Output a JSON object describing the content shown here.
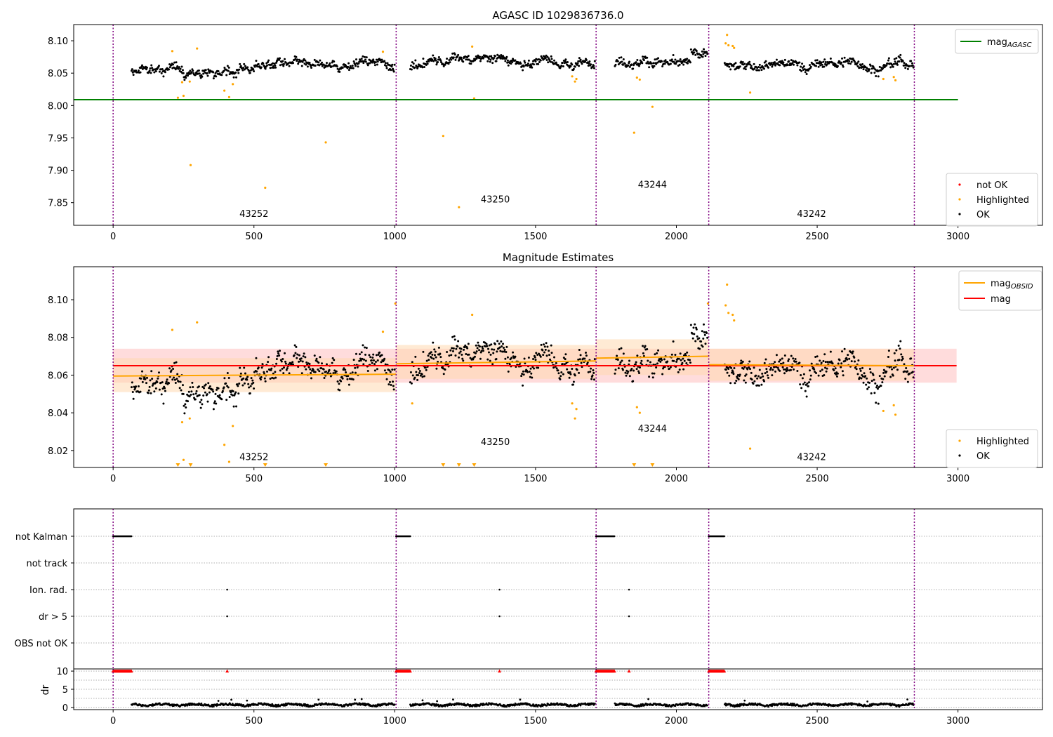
{
  "colors": {
    "ok": "#000000",
    "highlighted": "#ffa500",
    "not_ok": "#ff0000",
    "agasc_line": "#008000",
    "mag_line": "#ff0000",
    "obsid_line": "#ffa500",
    "obsid_divider": "#800080",
    "mag_band": "#ffc0c0",
    "obsid_band": "#ffd8b0"
  },
  "chart_data": [
    {
      "id": "agasc",
      "type": "scatter",
      "title": "AGASC ID 1029836736.0",
      "xlim": [
        -140,
        3300
      ],
      "ylim": [
        7.815,
        8.125
      ],
      "xticks": [
        0,
        500,
        1000,
        1500,
        2000,
        2500,
        3000
      ],
      "yticks": [
        7.85,
        7.9,
        7.95,
        8.0,
        8.05,
        8.1
      ],
      "ytick_labels": [
        "7.85",
        "7.90",
        "7.95",
        "8.00",
        "8.05",
        "8.10"
      ],
      "obsid_boundaries": [
        0,
        1005,
        1715,
        2115,
        2845
      ],
      "obsids": [
        {
          "label": "43252",
          "x": 500,
          "y": 7.828,
          "start": 0,
          "end": 1005,
          "mean": 8.06
        },
        {
          "label": "43250",
          "x": 1357,
          "y": 7.85,
          "start": 1005,
          "end": 1715,
          "mean": 8.066
        },
        {
          "label": "43244",
          "x": 1915,
          "y": 7.873,
          "start": 1715,
          "end": 2115,
          "mean": 8.067
        },
        {
          "label": "43242",
          "x": 2480,
          "y": 7.828,
          "start": 2115,
          "end": 2845,
          "mean": 8.065
        }
      ],
      "mag_agasc": {
        "value": 8.009,
        "x": [
          -140,
          3000
        ]
      },
      "highlighted": [
        [
          210,
          8.084
        ],
        [
          230,
          8.012
        ],
        [
          245,
          8.036
        ],
        [
          250,
          8.015
        ],
        [
          272,
          8.037
        ],
        [
          275,
          7.908
        ],
        [
          298,
          8.088
        ],
        [
          395,
          8.023
        ],
        [
          412,
          8.013
        ],
        [
          425,
          8.033
        ],
        [
          540,
          7.873
        ],
        [
          755,
          7.943
        ],
        [
          958,
          8.083
        ],
        [
          1172,
          7.953
        ],
        [
          1228,
          7.843
        ],
        [
          1275,
          8.091
        ],
        [
          1282,
          8.011
        ],
        [
          1630,
          8.045
        ],
        [
          1640,
          8.037
        ],
        [
          1645,
          8.041
        ],
        [
          1850,
          7.958
        ],
        [
          1860,
          8.043
        ],
        [
          1870,
          8.04
        ],
        [
          1915,
          7.998
        ],
        [
          2175,
          8.096
        ],
        [
          2180,
          8.109
        ],
        [
          2185,
          8.093
        ],
        [
          2200,
          8.092
        ],
        [
          2205,
          8.089
        ],
        [
          2262,
          8.02
        ],
        [
          2735,
          8.041
        ],
        [
          2772,
          8.044
        ],
        [
          2778,
          8.039
        ]
      ],
      "legend_lines": [
        {
          "label": "mag",
          "sub": "AGASC",
          "color": "#008000"
        }
      ],
      "legend_points": [
        {
          "label": "not OK",
          "color": "#ff0000"
        },
        {
          "label": "Highlighted",
          "color": "#ffa500"
        },
        {
          "label": "OK",
          "color": "#000000"
        }
      ]
    },
    {
      "id": "estimates",
      "type": "scatter",
      "title": "Magnitude Estimates",
      "xlim": [
        -140,
        3300
      ],
      "ylim": [
        8.011,
        8.1175
      ],
      "xticks": [
        0,
        500,
        1000,
        1500,
        2000,
        2500,
        3000
      ],
      "yticks": [
        8.02,
        8.04,
        8.06,
        8.08,
        8.1
      ],
      "ytick_labels": [
        "8.02",
        "8.04",
        "8.06",
        "8.08",
        "8.10"
      ],
      "obsid_boundaries": [
        0,
        1005,
        1715,
        2115,
        2845
      ],
      "obsid_labels": [
        {
          "label": "43252",
          "x": 500,
          "y": 8.015
        },
        {
          "label": "43250",
          "x": 1357,
          "y": 8.023
        },
        {
          "label": "43244",
          "x": 1915,
          "y": 8.03
        },
        {
          "label": "43242",
          "x": 2480,
          "y": 8.015
        }
      ],
      "mag": {
        "value": 8.065,
        "band": [
          8.056,
          8.074
        ],
        "x": [
          0,
          2995
        ]
      },
      "obsid_segments": [
        {
          "start": 0,
          "end": 1005,
          "y0": 8.0595,
          "y1": 8.0605,
          "band": [
            8.051,
            8.069
          ]
        },
        {
          "start": 1005,
          "end": 1715,
          "y0": 8.066,
          "y1": 8.0675,
          "band": [
            8.058,
            8.076
          ]
        },
        {
          "start": 1715,
          "end": 2115,
          "y0": 8.069,
          "y1": 8.07,
          "band": [
            8.06,
            8.079
          ]
        },
        {
          "start": 2115,
          "end": 2845,
          "y0": 8.0655,
          "y1": 8.065,
          "band": [
            8.057,
            8.074
          ]
        }
      ],
      "highlighted": [
        [
          210,
          8.084
        ],
        [
          245,
          8.035
        ],
        [
          250,
          8.015
        ],
        [
          272,
          8.037
        ],
        [
          298,
          8.088
        ],
        [
          395,
          8.023
        ],
        [
          412,
          8.014
        ],
        [
          425,
          8.033
        ],
        [
          958,
          8.083
        ],
        [
          1002,
          8.098
        ],
        [
          1062,
          8.045
        ],
        [
          1275,
          8.092
        ],
        [
          1630,
          8.045
        ],
        [
          1640,
          8.037
        ],
        [
          1645,
          8.042
        ],
        [
          1860,
          8.043
        ],
        [
          1870,
          8.04
        ],
        [
          2112,
          8.098
        ],
        [
          2175,
          8.097
        ],
        [
          2180,
          8.108
        ],
        [
          2185,
          8.093
        ],
        [
          2200,
          8.092
        ],
        [
          2205,
          8.089
        ],
        [
          2262,
          8.021
        ],
        [
          2735,
          8.041
        ],
        [
          2772,
          8.044
        ],
        [
          2778,
          8.039
        ]
      ],
      "below_range": [
        230,
        275,
        540,
        755,
        1172,
        1228,
        1282,
        1850,
        1915
      ],
      "legend_lines": [
        {
          "label": "mag",
          "sub": "OBSID",
          "color": "#ffa500"
        },
        {
          "label": "mag",
          "sub": "",
          "color": "#ff0000"
        }
      ],
      "legend_points": [
        {
          "label": "Highlighted",
          "color": "#ffa500"
        },
        {
          "label": "OK",
          "color": "#000000"
        }
      ]
    },
    {
      "id": "flags",
      "type": "scatter",
      "xlim": [
        -140,
        3300
      ],
      "categories": [
        "not Kalman",
        "not track",
        "Ion. rad.",
        "dr > 5",
        "OBS not OK"
      ],
      "flag_ranges": {
        "not Kalman": [
          [
            0,
            65
          ],
          [
            1005,
            1055
          ],
          [
            1715,
            1780
          ],
          [
            2115,
            2170
          ]
        ],
        "not track": [],
        "Ion. rad.": [
          [
            405,
            405
          ],
          [
            1372,
            1372
          ],
          [
            1832,
            1832
          ]
        ],
        "dr > 5": [
          [
            405,
            405
          ],
          [
            1372,
            1372
          ],
          [
            1832,
            1832
          ]
        ],
        "OBS not OK": []
      },
      "obsid_boundaries": [
        0,
        1005,
        1715,
        2115,
        2845
      ]
    },
    {
      "id": "dr",
      "type": "scatter",
      "ylabel": "dr",
      "xlim": [
        -140,
        3300
      ],
      "ylim": [
        -0.6,
        10.6
      ],
      "xticks": [
        0,
        500,
        1000,
        1500,
        2000,
        2500,
        3000
      ],
      "yticks": [
        0,
        5,
        10
      ],
      "ytick_labels": [
        "0",
        "5",
        "10"
      ],
      "clipped_value": 10,
      "clipped_ranges": [
        [
          0,
          65
        ],
        [
          405,
          405
        ],
        [
          1005,
          1055
        ],
        [
          1372,
          1372
        ],
        [
          1715,
          1780
        ],
        [
          1832,
          1832
        ],
        [
          2115,
          2170
        ]
      ],
      "obsid_boundaries": [
        0,
        1005,
        1715,
        2115,
        2845
      ]
    }
  ]
}
